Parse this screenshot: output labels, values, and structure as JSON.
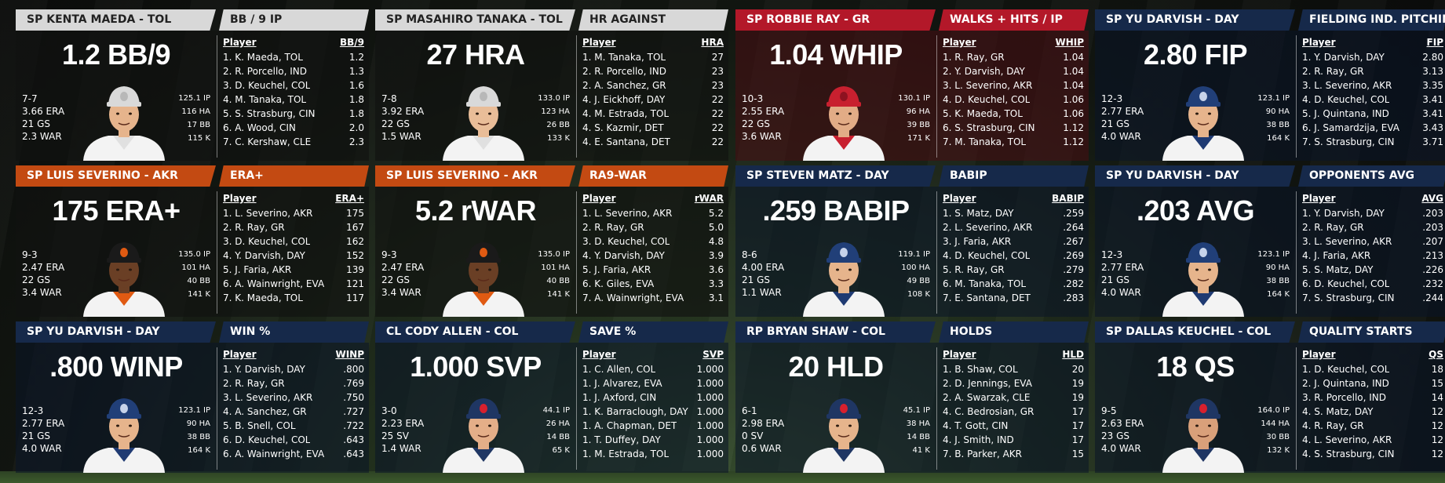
{
  "cards": [
    {
      "player": "SP KENTA MAEDA - TOL",
      "category": "BB / 9 IP",
      "hdr_color": "gray",
      "tint": "dark",
      "stat": "1.2 BB/9",
      "record": "7-7",
      "era": "3.66 ERA",
      "gs": "21 GS",
      "war": "2.3 WAR",
      "ip": "125.1 IP",
      "ha": "116 HA",
      "bb": "17 BB",
      "k": "115 K",
      "col_player": "Player",
      "col_stat": "BB/9",
      "cap": "#d9d9d9",
      "logo": "#b8b8b8",
      "shirt": "#f3f3f3",
      "trim": "#e0e0e0",
      "skin": "#e6b48c",
      "rows": [
        {
          "name": "1. K. Maeda, TOL",
          "val": "1.2"
        },
        {
          "name": "2. R. Porcello, IND",
          "val": "1.3"
        },
        {
          "name": "3. D. Keuchel, COL",
          "val": "1.6"
        },
        {
          "name": "4. M. Tanaka, TOL",
          "val": "1.8"
        },
        {
          "name": "5. S. Strasburg, CIN",
          "val": "1.8"
        },
        {
          "name": "6. A. Wood, CIN",
          "val": "2.0"
        },
        {
          "name": "7. C. Kershaw, CLE",
          "val": "2.3"
        }
      ]
    },
    {
      "player": "SP MASAHIRO TANAKA - TOL",
      "category": "HR AGAINST",
      "hdr_color": "gray",
      "tint": "dark",
      "stat": "27 HRA",
      "record": "7-8",
      "era": "3.92 ERA",
      "gs": "22 GS",
      "war": "1.5 WAR",
      "ip": "133.0 IP",
      "ha": "123 HA",
      "bb": "26 BB",
      "k": "133 K",
      "col_player": "Player",
      "col_stat": "HRA",
      "cap": "#d9d9d9",
      "logo": "#b8b8b8",
      "shirt": "#f3f3f3",
      "trim": "#e0e0e0",
      "skin": "#e9bd98",
      "rows": [
        {
          "name": "1. M. Tanaka, TOL",
          "val": "27"
        },
        {
          "name": "2. R. Porcello, IND",
          "val": "23"
        },
        {
          "name": "2. A. Sanchez, GR",
          "val": "23"
        },
        {
          "name": "4. J. Eickhoff, DAY",
          "val": "22"
        },
        {
          "name": "4. M. Estrada, TOL",
          "val": "22"
        },
        {
          "name": "4. S. Kazmir, DET",
          "val": "22"
        },
        {
          "name": "4. E. Santana, DET",
          "val": "22"
        }
      ]
    },
    {
      "player": "SP ROBBIE RAY - GR",
      "category": "WALKS + HITS / IP",
      "hdr_color": "red",
      "tint": "red",
      "stat": "1.04 WHIP",
      "record": "10-3",
      "era": "2.55 ERA",
      "gs": "22 GS",
      "war": "3.6 WAR",
      "ip": "130.1 IP",
      "ha": "96 HA",
      "bb": "39 BB",
      "k": "171 K",
      "col_player": "Player",
      "col_stat": "WHIP",
      "cap": "#c8202f",
      "logo": "#8e1220",
      "shirt": "#f3f3f3",
      "trim": "#c8202f",
      "skin": "#e2ac86",
      "rows": [
        {
          "name": "1. R. Ray, GR",
          "val": "1.04"
        },
        {
          "name": "2. Y. Darvish, DAY",
          "val": "1.04"
        },
        {
          "name": "3. L. Severino, AKR",
          "val": "1.04"
        },
        {
          "name": "4. D. Keuchel, COL",
          "val": "1.06"
        },
        {
          "name": "5. K. Maeda, TOL",
          "val": "1.06"
        },
        {
          "name": "6. S. Strasburg, CIN",
          "val": "1.12"
        },
        {
          "name": "7. M. Tanaka, TOL",
          "val": "1.12"
        }
      ]
    },
    {
      "player": "SP YU DARVISH - DAY",
      "category": "FIELDING IND. PITCHING",
      "hdr_color": "navy",
      "tint": "blue",
      "stat": "2.80 FIP",
      "record": "12-3",
      "era": "2.77 ERA",
      "gs": "21 GS",
      "war": "4.0 WAR",
      "ip": "123.1 IP",
      "ha": "90 HA",
      "bb": "38 BB",
      "k": "164 K",
      "col_player": "Player",
      "col_stat": "FIP",
      "cap": "#213f78",
      "logo": "#c7d3ea",
      "shirt": "#f3f3f3",
      "trim": "#1f3a72",
      "skin": "#e6b48c",
      "rows": [
        {
          "name": "1. Y. Darvish, DAY",
          "val": "2.80"
        },
        {
          "name": "2. R. Ray, GR",
          "val": "3.13"
        },
        {
          "name": "3. L. Severino, AKR",
          "val": "3.35"
        },
        {
          "name": "4. D. Keuchel, COL",
          "val": "3.41"
        },
        {
          "name": "5. J. Quintana, IND",
          "val": "3.41"
        },
        {
          "name": "6. J. Samardzija, EVA",
          "val": "3.43"
        },
        {
          "name": "7. S. Strasburg, CIN",
          "val": "3.71"
        }
      ]
    },
    {
      "player": "SP LUIS SEVERINO - AKR",
      "category": "ERA+",
      "hdr_color": "orange",
      "tint": "dark",
      "stat": "175 ERA+",
      "record": "9-3",
      "era": "2.47 ERA",
      "gs": "22 GS",
      "war": "3.4 WAR",
      "ip": "135.0 IP",
      "ha": "101 HA",
      "bb": "40 BB",
      "k": "141 K",
      "col_player": "Player",
      "col_stat": "ERA+",
      "cap": "#1a1a1a",
      "logo": "#e05a12",
      "shirt": "#f3f3f3",
      "trim": "#e05a12",
      "skin": "#6a3f25",
      "rows": [
        {
          "name": "1. L. Severino, AKR",
          "val": "175"
        },
        {
          "name": "2. R. Ray, GR",
          "val": "167"
        },
        {
          "name": "3. D. Keuchel, COL",
          "val": "162"
        },
        {
          "name": "4. Y. Darvish, DAY",
          "val": "152"
        },
        {
          "name": "5. J. Faria, AKR",
          "val": "139"
        },
        {
          "name": "6. A. Wainwright, EVA",
          "val": "121"
        },
        {
          "name": "7. K. Maeda, TOL",
          "val": "117"
        }
      ]
    },
    {
      "player": "SP LUIS SEVERINO - AKR",
      "category": "RA9-WAR",
      "hdr_color": "orange",
      "tint": "dark",
      "stat": "5.2 rWAR",
      "record": "9-3",
      "era": "2.47 ERA",
      "gs": "22 GS",
      "war": "3.4 WAR",
      "ip": "135.0 IP",
      "ha": "101 HA",
      "bb": "40 BB",
      "k": "141 K",
      "col_player": "Player",
      "col_stat": "rWAR",
      "cap": "#1a1a1a",
      "logo": "#e05a12",
      "shirt": "#f3f3f3",
      "trim": "#e05a12",
      "skin": "#6a3f25",
      "rows": [
        {
          "name": "1. L. Severino, AKR",
          "val": "5.2"
        },
        {
          "name": "2. R. Ray, GR",
          "val": "5.0"
        },
        {
          "name": "3. D. Keuchel, COL",
          "val": "4.8"
        },
        {
          "name": "4. Y. Darvish, DAY",
          "val": "3.9"
        },
        {
          "name": "5. J. Faria, AKR",
          "val": "3.6"
        },
        {
          "name": "6. K. Giles, EVA",
          "val": "3.3"
        },
        {
          "name": "7. A. Wainwright, EVA",
          "val": "3.1"
        }
      ]
    },
    {
      "player": "SP STEVEN MATZ - DAY",
      "category": "BABIP",
      "hdr_color": "navy",
      "tint": "blue",
      "stat": ".259 BABIP",
      "record": "8-6",
      "era": "4.00 ERA",
      "gs": "21 GS",
      "war": "1.1 WAR",
      "ip": "119.1 IP",
      "ha": "100 HA",
      "bb": "49 BB",
      "k": "108 K",
      "col_player": "Player",
      "col_stat": "BABIP",
      "cap": "#213f78",
      "logo": "#c7d3ea",
      "shirt": "#f3f3f3",
      "trim": "#1f3a72",
      "skin": "#e6b48c",
      "rows": [
        {
          "name": "1. S. Matz, DAY",
          "val": ".259"
        },
        {
          "name": "2. L. Severino, AKR",
          "val": ".264"
        },
        {
          "name": "3. J. Faria, AKR",
          "val": ".267"
        },
        {
          "name": "4. D. Keuchel, COL",
          "val": ".269"
        },
        {
          "name": "5. R. Ray, GR",
          "val": ".279"
        },
        {
          "name": "6. M. Tanaka, TOL",
          "val": ".282"
        },
        {
          "name": "7. E. Santana, DET",
          "val": ".283"
        }
      ]
    },
    {
      "player": "SP YU DARVISH - DAY",
      "category": "OPPONENTS AVG",
      "hdr_color": "navy",
      "tint": "blue",
      "stat": ".203 AVG",
      "record": "12-3",
      "era": "2.77 ERA",
      "gs": "21 GS",
      "war": "4.0 WAR",
      "ip": "123.1 IP",
      "ha": "90 HA",
      "bb": "38 BB",
      "k": "164 K",
      "col_player": "Player",
      "col_stat": "AVG",
      "cap": "#213f78",
      "logo": "#c7d3ea",
      "shirt": "#f3f3f3",
      "trim": "#1f3a72",
      "skin": "#e6b48c",
      "rows": [
        {
          "name": "1. Y. Darvish, DAY",
          "val": ".203"
        },
        {
          "name": "2. R. Ray, GR",
          "val": ".203"
        },
        {
          "name": "3. L. Severino, AKR",
          "val": ".207"
        },
        {
          "name": "4. J. Faria, AKR",
          "val": ".213"
        },
        {
          "name": "5. S. Matz, DAY",
          "val": ".226"
        },
        {
          "name": "6. D. Keuchel, COL",
          "val": ".232"
        },
        {
          "name": "7. S. Strasburg, CIN",
          "val": ".244"
        }
      ]
    },
    {
      "player": "SP YU DARVISH - DAY",
      "category": "WIN %",
      "hdr_color": "navy",
      "tint": "blue",
      "stat": ".800 WINP",
      "record": "12-3",
      "era": "2.77 ERA",
      "gs": "21 GS",
      "war": "4.0 WAR",
      "ip": "123.1 IP",
      "ha": "90 HA",
      "bb": "38 BB",
      "k": "164 K",
      "col_player": "Player",
      "col_stat": "WINP",
      "cap": "#213f78",
      "logo": "#c7d3ea",
      "shirt": "#f3f3f3",
      "trim": "#1f3a72",
      "skin": "#e6b48c",
      "rows": [
        {
          "name": "1. Y. Darvish, DAY",
          "val": ".800"
        },
        {
          "name": "2. R. Ray, GR",
          "val": ".769"
        },
        {
          "name": "3. L. Severino, AKR",
          "val": ".750"
        },
        {
          "name": "4. A. Sanchez, GR",
          "val": ".727"
        },
        {
          "name": "5. B. Snell, COL",
          "val": ".722"
        },
        {
          "name": "6. D. Keuchel, COL",
          "val": ".643"
        },
        {
          "name": "6. A. Wainwright, EVA",
          "val": ".643"
        }
      ]
    },
    {
      "player": "CL CODY ALLEN - COL",
      "category": "SAVE %",
      "hdr_color": "navy",
      "tint": "blue",
      "stat": "1.000 SVP",
      "record": "3-0",
      "era": "2.23 ERA",
      "gs": "25 SV",
      "war": "1.4 WAR",
      "ip": "44.1 IP",
      "ha": "26 HA",
      "bb": "14 BB",
      "k": "65 K",
      "col_player": "Player",
      "col_stat": "SVP",
      "cap": "#1f3663",
      "logo": "#d8202e",
      "shirt": "#f3f3f3",
      "trim": "#1f3663",
      "skin": "#e4ae88",
      "rows": [
        {
          "name": "1. C. Allen, COL",
          "val": "1.000"
        },
        {
          "name": "1. J. Alvarez, EVA",
          "val": "1.000"
        },
        {
          "name": "1. J. Axford, CIN",
          "val": "1.000"
        },
        {
          "name": "1. K. Barraclough, DAY",
          "val": "1.000"
        },
        {
          "name": "1. A. Chapman, DET",
          "val": "1.000"
        },
        {
          "name": "1. T. Duffey, DAY",
          "val": "1.000"
        },
        {
          "name": "1. M. Estrada, TOL",
          "val": "1.000"
        }
      ]
    },
    {
      "player": "RP BRYAN SHAW - COL",
      "category": "HOLDS",
      "hdr_color": "navy",
      "tint": "blue",
      "stat": "20 HLD",
      "record": "6-1",
      "era": "2.98 ERA",
      "gs": "0 SV",
      "war": "0.6 WAR",
      "ip": "45.1 IP",
      "ha": "38 HA",
      "bb": "14 BB",
      "k": "41 K",
      "col_player": "Player",
      "col_stat": "HLD",
      "cap": "#1f3663",
      "logo": "#d8202e",
      "shirt": "#f3f3f3",
      "trim": "#1f3663",
      "skin": "#e6b48c",
      "rows": [
        {
          "name": "1. B. Shaw, COL",
          "val": "20"
        },
        {
          "name": "2. D. Jennings, EVA",
          "val": "19"
        },
        {
          "name": "2. A. Swarzak, CLE",
          "val": "19"
        },
        {
          "name": "4. C. Bedrosian, GR",
          "val": "17"
        },
        {
          "name": "4. T. Gott, CIN",
          "val": "17"
        },
        {
          "name": "4. J. Smith, IND",
          "val": "17"
        },
        {
          "name": "7. B. Parker, AKR",
          "val": "15"
        }
      ]
    },
    {
      "player": "SP DALLAS KEUCHEL - COL",
      "category": "QUALITY STARTS",
      "hdr_color": "navy",
      "tint": "blue",
      "stat": "18 QS",
      "record": "9-5",
      "era": "2.63 ERA",
      "gs": "23 GS",
      "war": "4.0 WAR",
      "ip": "164.0 IP",
      "ha": "144 HA",
      "bb": "30 BB",
      "k": "132 K",
      "col_player": "Player",
      "col_stat": "QS",
      "cap": "#1f3663",
      "logo": "#d8202e",
      "shirt": "#f3f3f3",
      "trim": "#1f3663",
      "skin": "#d9a07a",
      "rows": [
        {
          "name": "1. D. Keuchel, COL",
          "val": "18"
        },
        {
          "name": "2. J. Quintana, IND",
          "val": "15"
        },
        {
          "name": "3. R. Porcello, IND",
          "val": "14"
        },
        {
          "name": "4. S. Matz, DAY",
          "val": "12"
        },
        {
          "name": "4. R. Ray, GR",
          "val": "12"
        },
        {
          "name": "4. L. Severino, AKR",
          "val": "12"
        },
        {
          "name": "4. S. Strasburg, CIN",
          "val": "12"
        }
      ]
    }
  ]
}
